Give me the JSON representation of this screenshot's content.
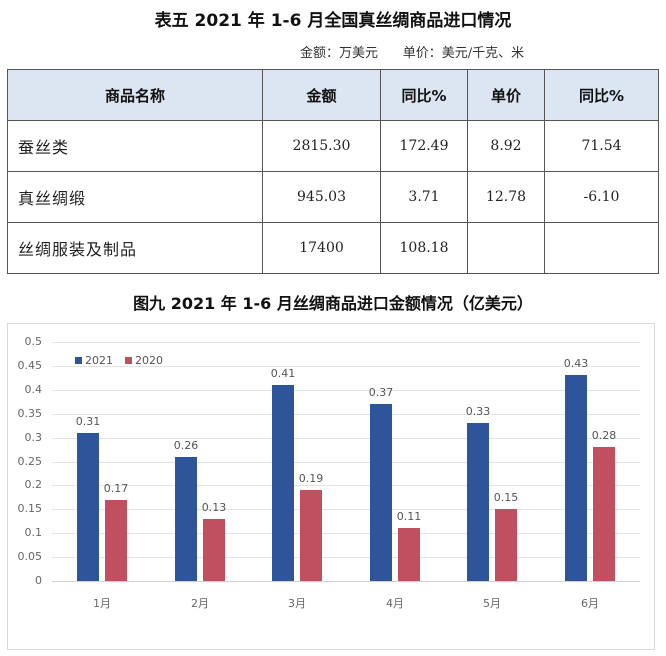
{
  "table": {
    "title": "表五 2021 年 1-6 月全国真丝绸商品进口情况",
    "units": "金额：万美元      单价：美元/千克、米",
    "headers": [
      "商品名称",
      "金额",
      "同比%",
      "单价",
      "同比%"
    ],
    "rows": [
      [
        "蚕丝类",
        "2815.30",
        "172.49",
        "8.92",
        "71.54"
      ],
      [
        "真丝绸缎",
        "945.03",
        "3.71",
        "12.78",
        "-6.10"
      ],
      [
        "丝绸服装及制品",
        "17400",
        "108.18",
        "",
        ""
      ]
    ]
  },
  "colors": {
    "series_2021": "#2e5499",
    "series_2020": "#c0505f",
    "header_fill": "#dce6f2"
  },
  "chart_data": {
    "type": "bar",
    "title": "图九 2021 年 1-6 月丝绸商品进口金额情况（亿美元）",
    "categories": [
      "1月",
      "2月",
      "3月",
      "4月",
      "5月",
      "6月"
    ],
    "series": [
      {
        "name": "2021",
        "values": [
          0.31,
          0.26,
          0.41,
          0.37,
          0.33,
          0.43
        ],
        "labels": [
          "0.31",
          "0.26",
          "0.41",
          "0.37",
          "0.33",
          "0.43"
        ]
      },
      {
        "name": "2020",
        "values": [
          0.17,
          0.13,
          0.19,
          0.11,
          0.15,
          0.28
        ],
        "labels": [
          "0.17",
          "0.13",
          "0.19",
          "0.11",
          "0.15",
          "0.28"
        ]
      }
    ],
    "yticks": [
      "0",
      "0.05",
      "0.1",
      "0.15",
      "0.2",
      "0.25",
      "0.3",
      "0.35",
      "0.4",
      "0.45",
      "0.5"
    ],
    "xlabel": "",
    "ylabel": "",
    "ylim": [
      0,
      0.5
    ],
    "grid": true,
    "legend_position": "top-left inside"
  }
}
